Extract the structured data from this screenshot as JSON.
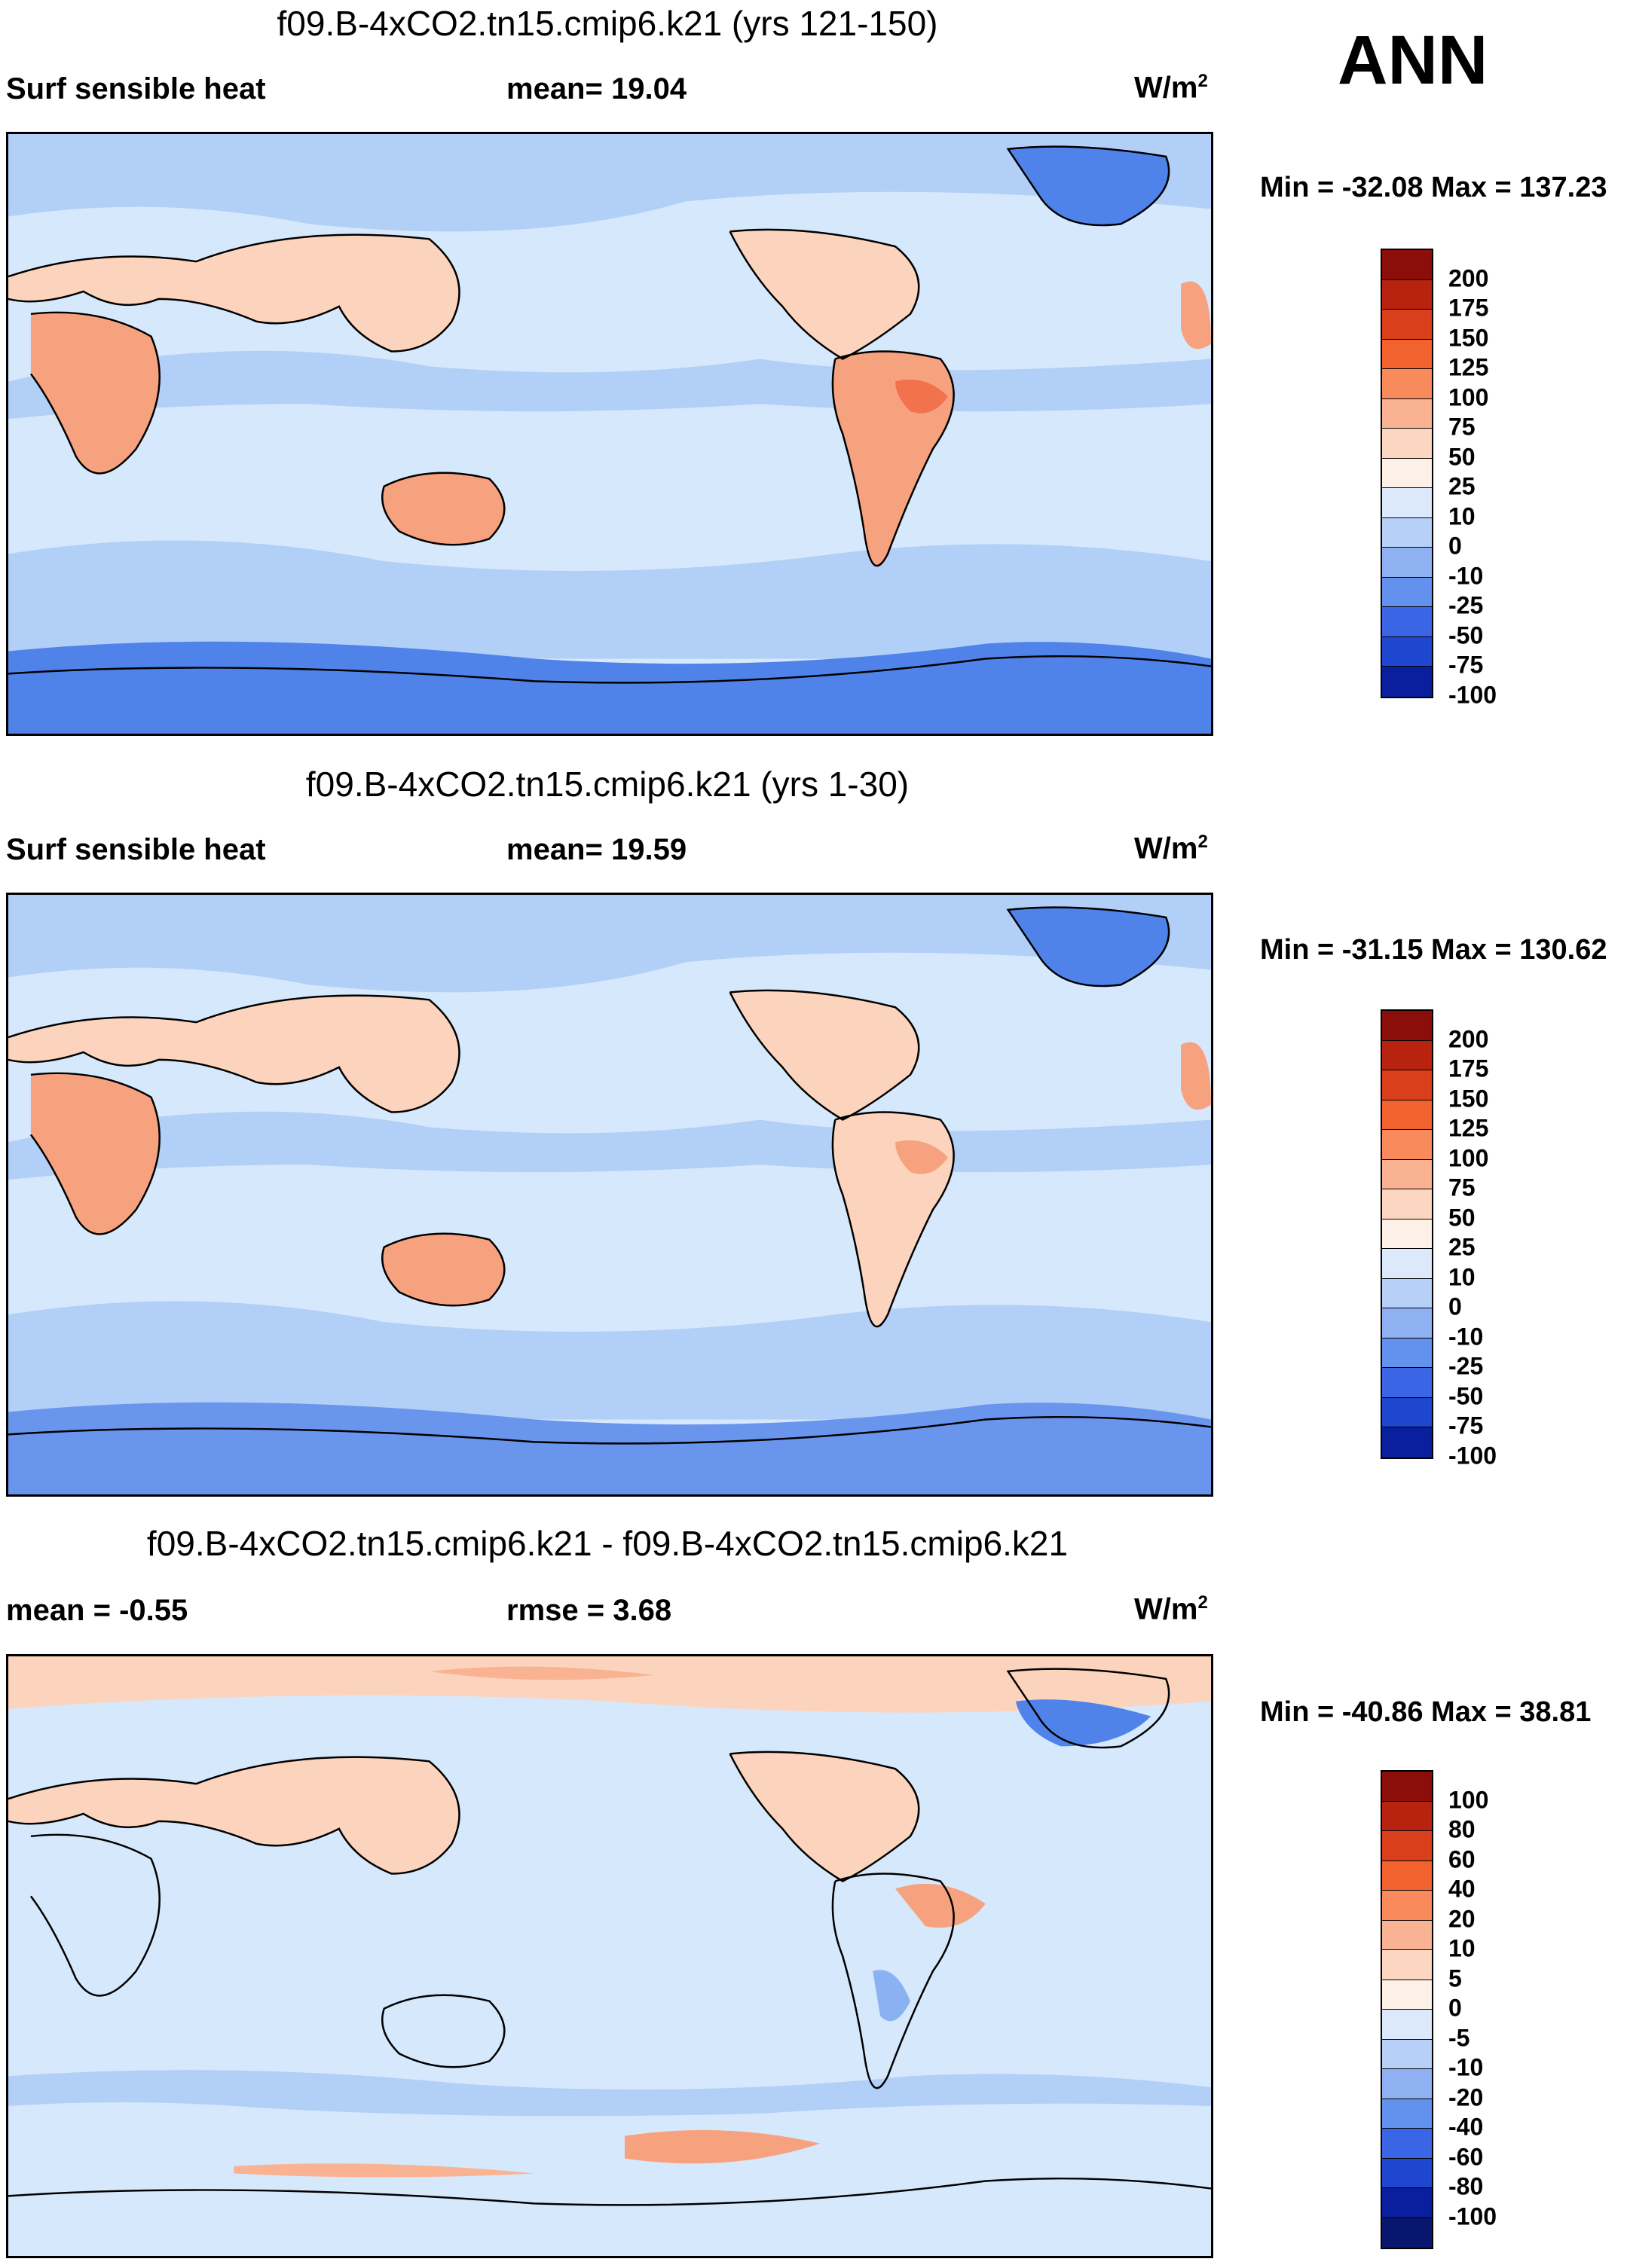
{
  "season": "ANN",
  "units_base": "W/m",
  "units_exp": "2",
  "colors": {
    "ocean_base": "#d6e8fb",
    "ocean_mid": "#b2cff7",
    "ocean_deep": "#8ab2f2",
    "ice": "#4f83ea",
    "land": "#fcd4bd",
    "land_warm": "#f7a27f",
    "land_hot": "#f2724e"
  },
  "panels": [
    {
      "title": "f09.B-4xCO2.tn15.cmip6.k21 (yrs 121-150)",
      "left_label": "Surf sensible heat",
      "center_label": "mean=  19.04",
      "minmax": "Min = -32.08 Max = 137.23",
      "colorbar": {
        "labels": [
          "200",
          "175",
          "150",
          "125",
          "100",
          "75",
          "50",
          "25",
          "10",
          "0",
          "-10",
          "-25",
          "-50",
          "-75",
          "-100"
        ],
        "colors": [
          "#8b0e0a",
          "#b8230f",
          "#da3f1c",
          "#f1622f",
          "#f88a5c",
          "#fab392",
          "#fdd6c2",
          "#fdf0e6",
          "#dbe9fb",
          "#b7d0f7",
          "#8fb1f2",
          "#6391ee",
          "#3a66e6",
          "#1f46cf",
          "#0a1f9e"
        ]
      }
    },
    {
      "title": "f09.B-4xCO2.tn15.cmip6.k21 (yrs 1-30)",
      "left_label": "Surf sensible heat",
      "center_label": "mean=  19.59",
      "minmax": "Min = -31.15 Max = 130.62",
      "colorbar": {
        "labels": [
          "200",
          "175",
          "150",
          "125",
          "100",
          "75",
          "50",
          "25",
          "10",
          "0",
          "-10",
          "-25",
          "-50",
          "-75",
          "-100"
        ],
        "colors": [
          "#8b0e0a",
          "#b8230f",
          "#da3f1c",
          "#f1622f",
          "#f88a5c",
          "#fab392",
          "#fdd6c2",
          "#fdf0e6",
          "#dbe9fb",
          "#b7d0f7",
          "#8fb1f2",
          "#6391ee",
          "#3a66e6",
          "#1f46cf",
          "#0a1f9e"
        ]
      }
    },
    {
      "title": "f09.B-4xCO2.tn15.cmip6.k21 - f09.B-4xCO2.tn15.cmip6.k21",
      "left_label": "mean =  -0.55",
      "center_label": "rmse =   3.68",
      "minmax": "Min = -40.86 Max =  38.81",
      "colorbar": {
        "labels": [
          "100",
          "80",
          "60",
          "40",
          "20",
          "10",
          "5",
          "0",
          "-5",
          "-10",
          "-20",
          "-40",
          "-60",
          "-80",
          "-100"
        ],
        "colors": [
          "#8b0e0a",
          "#b8230f",
          "#da3f1c",
          "#f1622f",
          "#f88a5c",
          "#fab392",
          "#fdd6c2",
          "#fdf0e6",
          "#dbe9fb",
          "#b7d0f7",
          "#8fb1f2",
          "#6391ee",
          "#3a66e6",
          "#1f46cf",
          "#0a1f9e",
          "#081670"
        ]
      }
    }
  ]
}
